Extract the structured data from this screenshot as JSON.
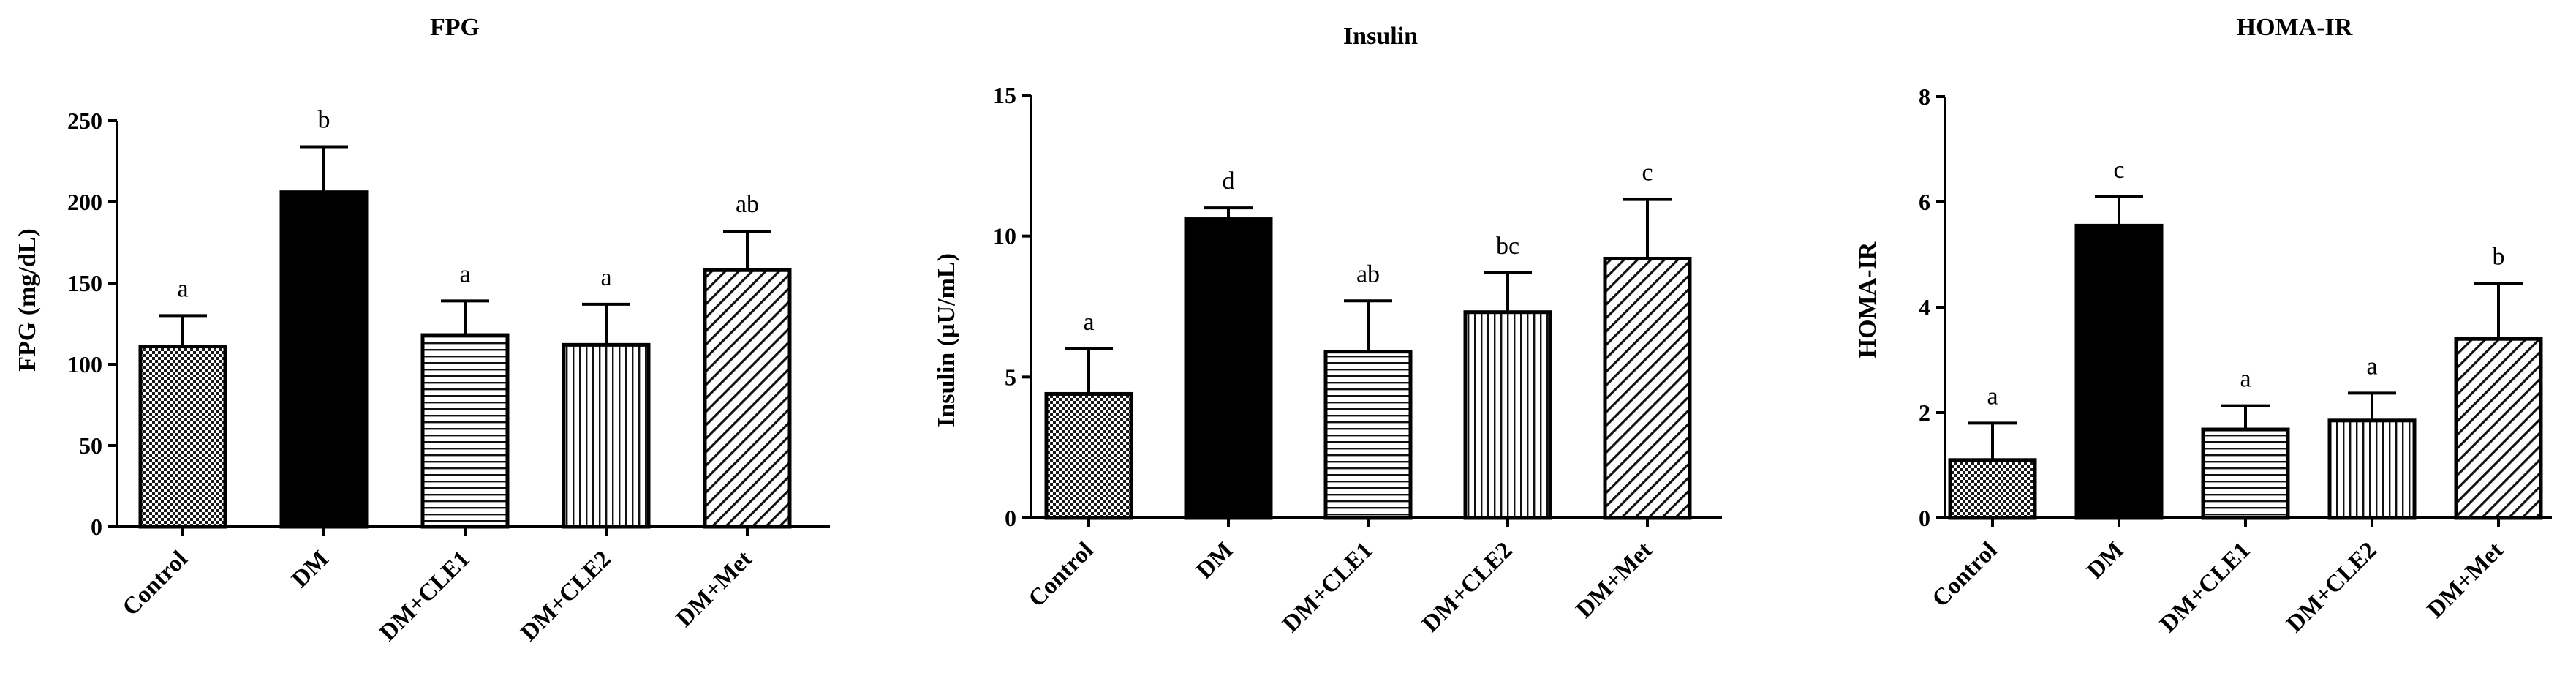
{
  "chart_data": [
    {
      "type": "bar",
      "title": "FPG",
      "xlabel": "",
      "ylabel": "FPG (mg/dL)",
      "ylim": [
        0,
        250
      ],
      "yticks": [
        0,
        50,
        100,
        150,
        200,
        250
      ],
      "categories": [
        "Control",
        "DM",
        "DM+CLE1",
        "DM+CLE2",
        "DM+Met"
      ],
      "values": [
        111,
        206,
        118,
        112,
        158
      ],
      "errors": [
        19,
        28,
        21,
        25,
        24
      ],
      "significance": [
        "a",
        "b",
        "a",
        "a",
        "ab"
      ],
      "patterns": [
        "checker",
        "solid",
        "horizontal",
        "vertical",
        "diagonal"
      ]
    },
    {
      "type": "bar",
      "title": "Insulin",
      "xlabel": "",
      "ylabel": "Insulin (µU/mL)",
      "ylim": [
        0,
        15
      ],
      "yticks": [
        0,
        5,
        10,
        15
      ],
      "categories": [
        "Control",
        "DM",
        "DM+CLE1",
        "DM+CLE2",
        "DM+Met"
      ],
      "values": [
        4.4,
        10.6,
        5.9,
        7.3,
        9.2
      ],
      "errors": [
        1.6,
        0.4,
        1.8,
        1.4,
        2.1
      ],
      "significance": [
        "a",
        "d",
        "ab",
        "bc",
        "c"
      ],
      "patterns": [
        "checker",
        "solid",
        "horizontal",
        "vertical",
        "diagonal"
      ]
    },
    {
      "type": "bar",
      "title": "HOMA-IR",
      "xlabel": "",
      "ylabel": "HOMA-IR",
      "ylim": [
        0,
        8
      ],
      "yticks": [
        0,
        2,
        4,
        6,
        8
      ],
      "categories": [
        "Control",
        "DM",
        "DM+CLE1",
        "DM+CLE2",
        "DM+Met"
      ],
      "values": [
        1.1,
        5.55,
        1.68,
        1.85,
        3.4
      ],
      "errors": [
        0.7,
        0.55,
        0.45,
        0.52,
        1.05
      ],
      "significance": [
        "a",
        "c",
        "a",
        "a",
        "b"
      ],
      "patterns": [
        "checker",
        "solid",
        "horizontal",
        "vertical",
        "diagonal"
      ]
    }
  ]
}
